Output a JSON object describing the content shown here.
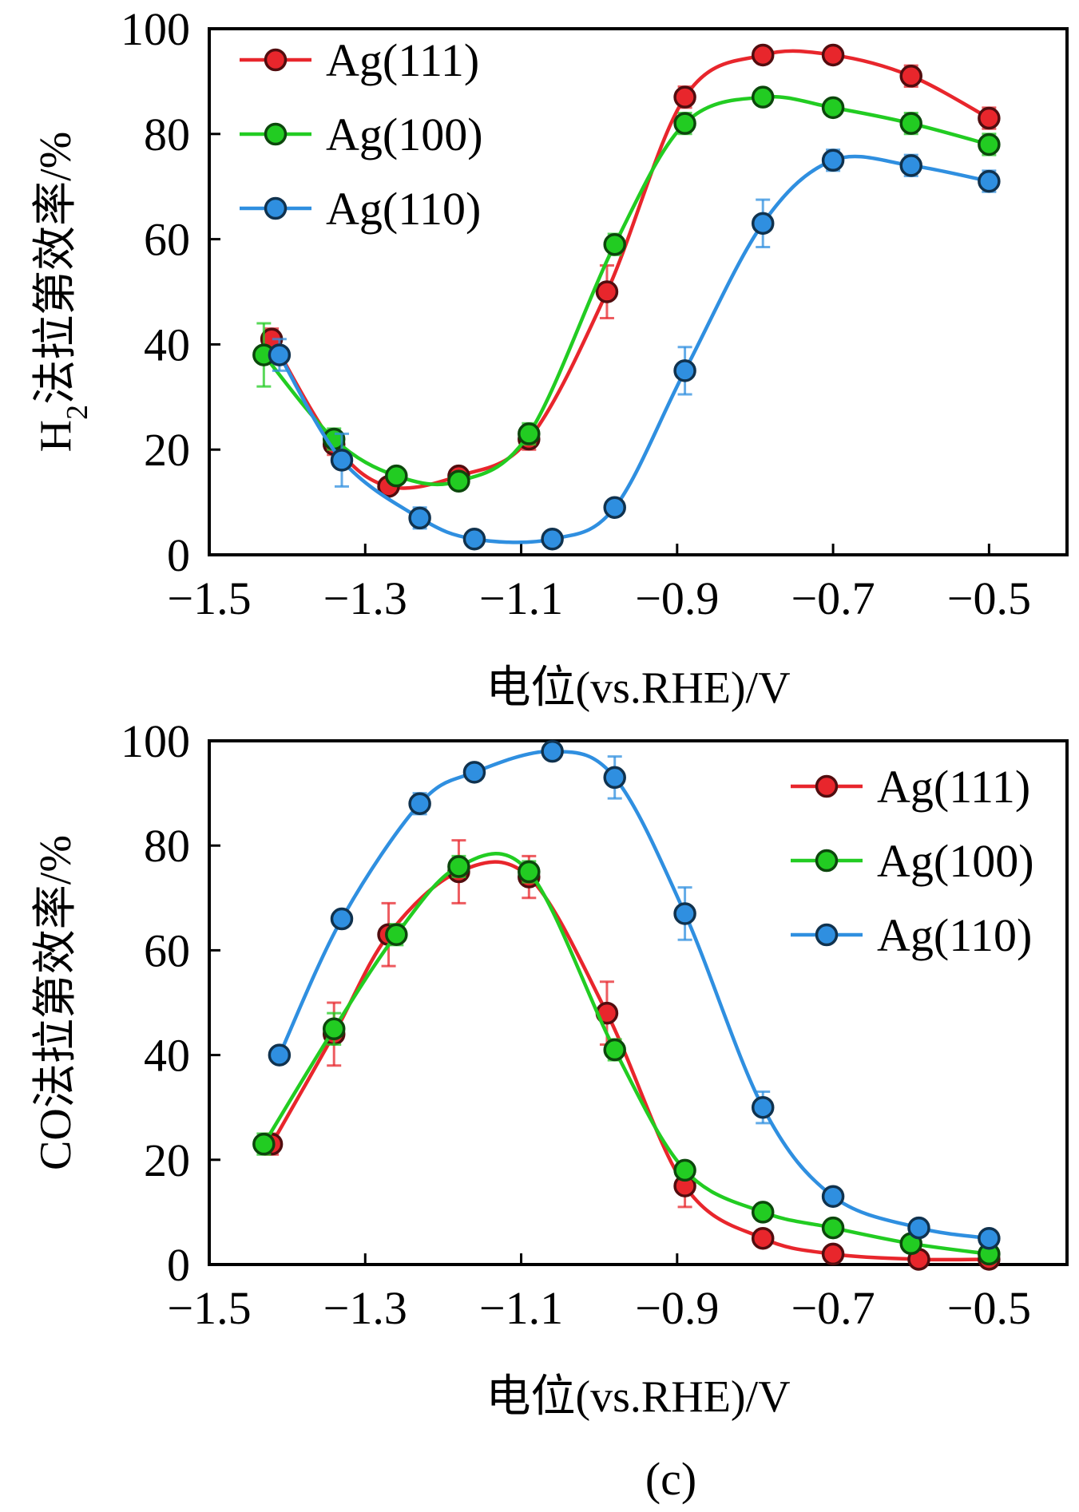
{
  "figure": {
    "caption": "(c)"
  },
  "chart_data": [
    {
      "type": "line",
      "title": "",
      "xlabel": "电位(vs.RHE)/V",
      "ylabel_main": "H",
      "ylabel_sub": "2",
      "ylabel_rest": "法拉第效率/%",
      "xlim": [
        -1.5,
        -0.4
      ],
      "ylim": [
        0,
        100
      ],
      "xticks": [
        -1.5,
        -1.3,
        -1.1,
        -0.9,
        -0.7,
        -0.5
      ],
      "xtick_labels": [
        "−1.5",
        "−1.3",
        "−1.1",
        "−0.9",
        "−0.7",
        "−0.5"
      ],
      "yticks": [
        0,
        20,
        40,
        60,
        80,
        100
      ],
      "ytick_labels": [
        "0",
        "20",
        "40",
        "60",
        "80",
        "100"
      ],
      "legend": "top-left",
      "grid": false,
      "series": [
        {
          "name": "Ag(111)",
          "color": "#e8262c",
          "x": [
            -1.42,
            -1.34,
            -1.27,
            -1.18,
            -1.09,
            -0.99,
            -0.89,
            -0.79,
            -0.7,
            -0.6,
            -0.5
          ],
          "y": [
            41,
            21,
            13,
            15,
            22,
            50,
            87,
            95,
            95,
            91,
            83
          ],
          "err": [
            2,
            2,
            1.5,
            1.5,
            2,
            5,
            2,
            1.5,
            1.5,
            2,
            2
          ]
        },
        {
          "name": "Ag(100)",
          "color": "#22cc22",
          "x": [
            -1.43,
            -1.34,
            -1.26,
            -1.18,
            -1.09,
            -0.98,
            -0.89,
            -0.79,
            -0.7,
            -0.6,
            -0.5
          ],
          "y": [
            38,
            22,
            15,
            14,
            23,
            59,
            82,
            87,
            85,
            82,
            78
          ],
          "err": [
            6,
            2,
            1.5,
            1.5,
            2,
            2,
            2,
            1.5,
            1.5,
            2,
            2
          ]
        },
        {
          "name": "Ag(110)",
          "color": "#2f8fe0",
          "x": [
            -1.41,
            -1.33,
            -1.23,
            -1.16,
            -1.06,
            -0.98,
            -0.89,
            -0.79,
            -0.7,
            -0.6,
            -0.5
          ],
          "y": [
            38,
            18,
            7,
            3,
            3,
            9,
            35,
            63,
            75,
            74,
            71
          ],
          "err": [
            3,
            5,
            2,
            1,
            1,
            1.5,
            4.5,
            4.5,
            2,
            2,
            2
          ]
        }
      ]
    },
    {
      "type": "line",
      "title": "",
      "xlabel": "电位(vs.RHE)/V",
      "ylabel_main": "CO",
      "ylabel_sub": "",
      "ylabel_rest": "法拉第效率/%",
      "xlim": [
        -1.5,
        -0.4
      ],
      "ylim": [
        0,
        100
      ],
      "xticks": [
        -1.5,
        -1.3,
        -1.1,
        -0.9,
        -0.7,
        -0.5
      ],
      "xtick_labels": [
        "−1.5",
        "−1.3",
        "−1.1",
        "−0.9",
        "−0.7",
        "−0.5"
      ],
      "yticks": [
        0,
        20,
        40,
        60,
        80,
        100
      ],
      "ytick_labels": [
        "0",
        "20",
        "40",
        "60",
        "80",
        "100"
      ],
      "legend": "top-right",
      "grid": false,
      "series": [
        {
          "name": "Ag(111)",
          "color": "#e8262c",
          "x": [
            -1.42,
            -1.34,
            -1.27,
            -1.18,
            -1.09,
            -0.99,
            -0.89,
            -0.79,
            -0.7,
            -0.59,
            -0.5
          ],
          "y": [
            23,
            44,
            63,
            75,
            74,
            48,
            15,
            5,
            2,
            1,
            1
          ],
          "err": [
            2,
            6,
            6,
            6,
            4,
            6,
            4,
            1.5,
            1,
            1,
            1
          ]
        },
        {
          "name": "Ag(100)",
          "color": "#22cc22",
          "x": [
            -1.43,
            -1.34,
            -1.26,
            -1.18,
            -1.09,
            -0.98,
            -0.89,
            -0.79,
            -0.7,
            -0.6,
            -0.5
          ],
          "y": [
            23,
            45,
            63,
            76,
            75,
            41,
            18,
            10,
            7,
            4,
            2
          ],
          "err": [
            2,
            3,
            2,
            2,
            2,
            2,
            1.5,
            1.5,
            1,
            1,
            1
          ]
        },
        {
          "name": "Ag(110)",
          "color": "#2f8fe0",
          "x": [
            -1.41,
            -1.33,
            -1.23,
            -1.16,
            -1.06,
            -0.98,
            -0.89,
            -0.79,
            -0.7,
            -0.59,
            -0.5
          ],
          "y": [
            40,
            66,
            88,
            94,
            98,
            93,
            67,
            30,
            13,
            7,
            5
          ],
          "err": [
            1.5,
            1.5,
            2,
            1.5,
            1.5,
            4,
            5,
            3,
            1.5,
            1,
            1
          ]
        }
      ]
    }
  ]
}
